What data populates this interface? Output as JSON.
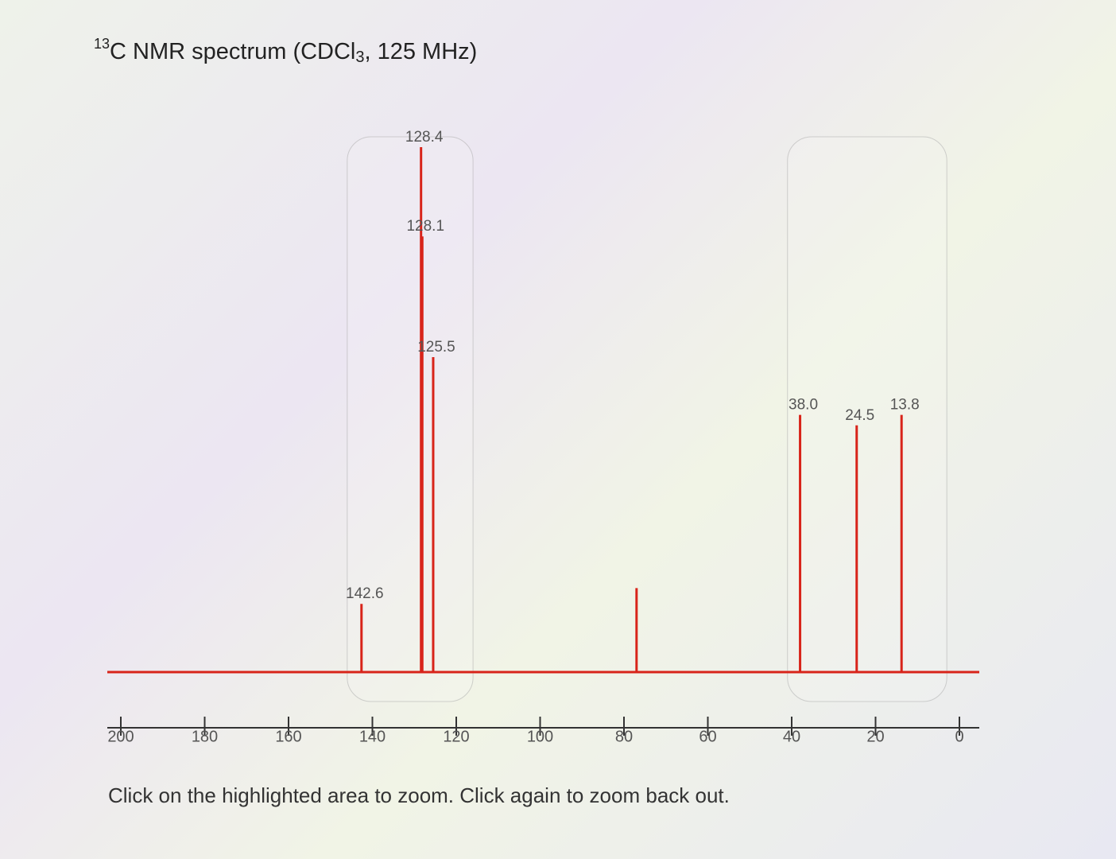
{
  "chart_data": {
    "type": "stick",
    "title": {
      "superscript": "13",
      "main": "C NMR spectrum (CDCl",
      "subscript": "3",
      "rest": ", 125 MHz)"
    },
    "x": [
      142.6,
      128.4,
      128.1,
      125.5,
      77.0,
      38.0,
      24.5,
      13.8
    ],
    "x_labels": [
      "142.6",
      "128.4",
      "128.1",
      "125.5",
      null,
      "38.0",
      "24.5",
      "13.8"
    ],
    "values": [
      13,
      100,
      83,
      60,
      16,
      49,
      47,
      49
    ],
    "color": "#d8241a",
    "xlim": [
      200,
      0
    ],
    "xticks": [
      200,
      180,
      160,
      140,
      120,
      100,
      80,
      60,
      40,
      20,
      0
    ],
    "ylim": [
      0,
      100
    ],
    "zoom_regions": [
      [
        146,
        116
      ],
      [
        41,
        3
      ]
    ],
    "instruction": "Click on the highlighted area to zoom. Click again to zoom back out."
  }
}
